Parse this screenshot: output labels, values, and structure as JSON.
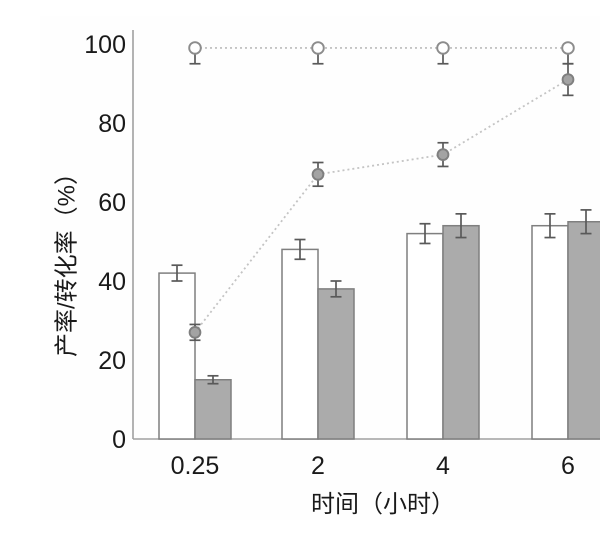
{
  "figure": {
    "x_axis_label": "时间（小时）",
    "y_axis_label": "产率/转化率（%）"
  },
  "chart_data": {
    "type": "bar",
    "subtype": "grouped-bar-with-dotted-line-overlay",
    "title": "",
    "xlabel": "时间（小时）",
    "ylabel": "产率/转化率（%）",
    "categories": [
      "0.25",
      "2",
      "4",
      "6"
    ],
    "ylim": [
      0,
      100
    ],
    "yticks": [
      0,
      20,
      40,
      60,
      80,
      100
    ],
    "grid": false,
    "legend": "none",
    "bar_series": [
      {
        "name": "white-bar-series",
        "style": "open",
        "values": [
          42,
          48,
          52,
          54
        ],
        "errors": [
          2,
          2.5,
          2.5,
          3
        ]
      },
      {
        "name": "gray-bar-series",
        "style": "filled-gray",
        "values": [
          15,
          38,
          54,
          55
        ],
        "errors": [
          1,
          2,
          3,
          3
        ]
      }
    ],
    "line_series": [
      {
        "name": "open-circle-series",
        "marker": "open-circle",
        "line_style": "dotted",
        "values": [
          99,
          99,
          99,
          99
        ],
        "errors": [
          4,
          4,
          4,
          4
        ],
        "error_direction": "minus"
      },
      {
        "name": "filled-circle-series",
        "marker": "filled-gray-circle",
        "line_style": "dotted",
        "values": [
          27,
          67,
          72,
          91
        ],
        "errors": [
          2,
          3,
          3,
          4
        ],
        "error_direction": "both"
      }
    ]
  },
  "colors": {
    "axis": "#a0a0a0",
    "text": "#1a1a1a",
    "bar_border": "#7f7f7f",
    "bar_white_fill": "#ffffff",
    "bar_gray_fill": "#ababab",
    "error_bar": "#595959",
    "dotted_line": "#c4c4c4",
    "open_marker_fill": "#ffffff",
    "open_marker_stroke": "#8c8c8c",
    "filled_marker_fill": "#a3a3a3",
    "filled_marker_stroke": "#7f7f7f"
  }
}
